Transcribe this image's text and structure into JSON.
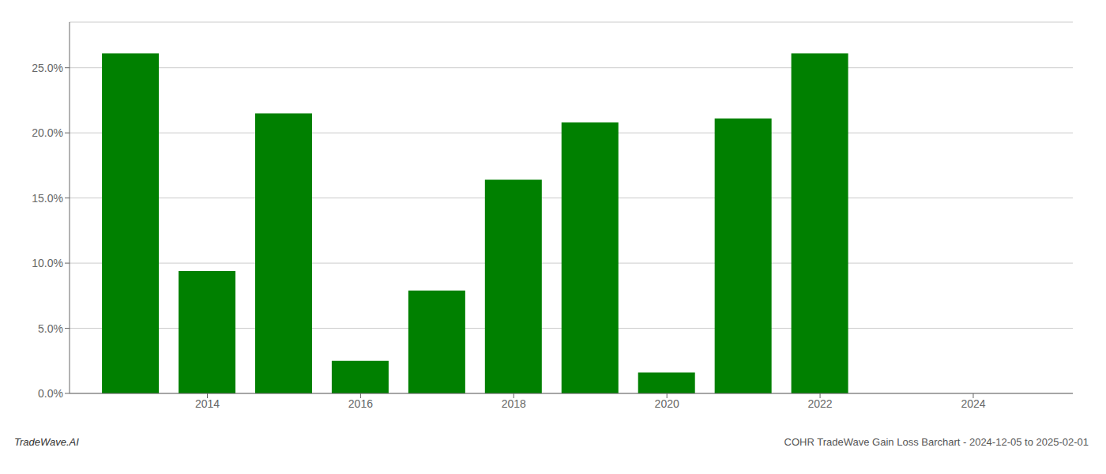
{
  "chart_data": {
    "type": "bar",
    "x": [
      2013,
      2014,
      2015,
      2016,
      2017,
      2018,
      2019,
      2020,
      2021,
      2022,
      2023,
      2024
    ],
    "values": [
      0.261,
      0.094,
      0.215,
      0.025,
      0.079,
      0.164,
      0.208,
      0.016,
      0.211,
      0.261,
      0.0,
      0.0
    ],
    "color": "#008000",
    "xlim": [
      2012.2,
      2025.3
    ],
    "xticks": [
      2014,
      2016,
      2018,
      2020,
      2022,
      2024
    ],
    "ylim": [
      0,
      0.285
    ],
    "yticks": [
      {
        "value": 0.0,
        "label": "0.0%"
      },
      {
        "value": 0.05,
        "label": "5.0%"
      },
      {
        "value": 0.1,
        "label": "10.0%"
      },
      {
        "value": 0.15,
        "label": "15.0%"
      },
      {
        "value": 0.2,
        "label": "20.0%"
      },
      {
        "value": 0.25,
        "label": "25.0%"
      }
    ],
    "grid": true,
    "annotations": [
      "TradeWave.AI",
      "COHR TradeWave Gain Loss Barchart - 2024-12-05 to 2025-02-01"
    ]
  }
}
